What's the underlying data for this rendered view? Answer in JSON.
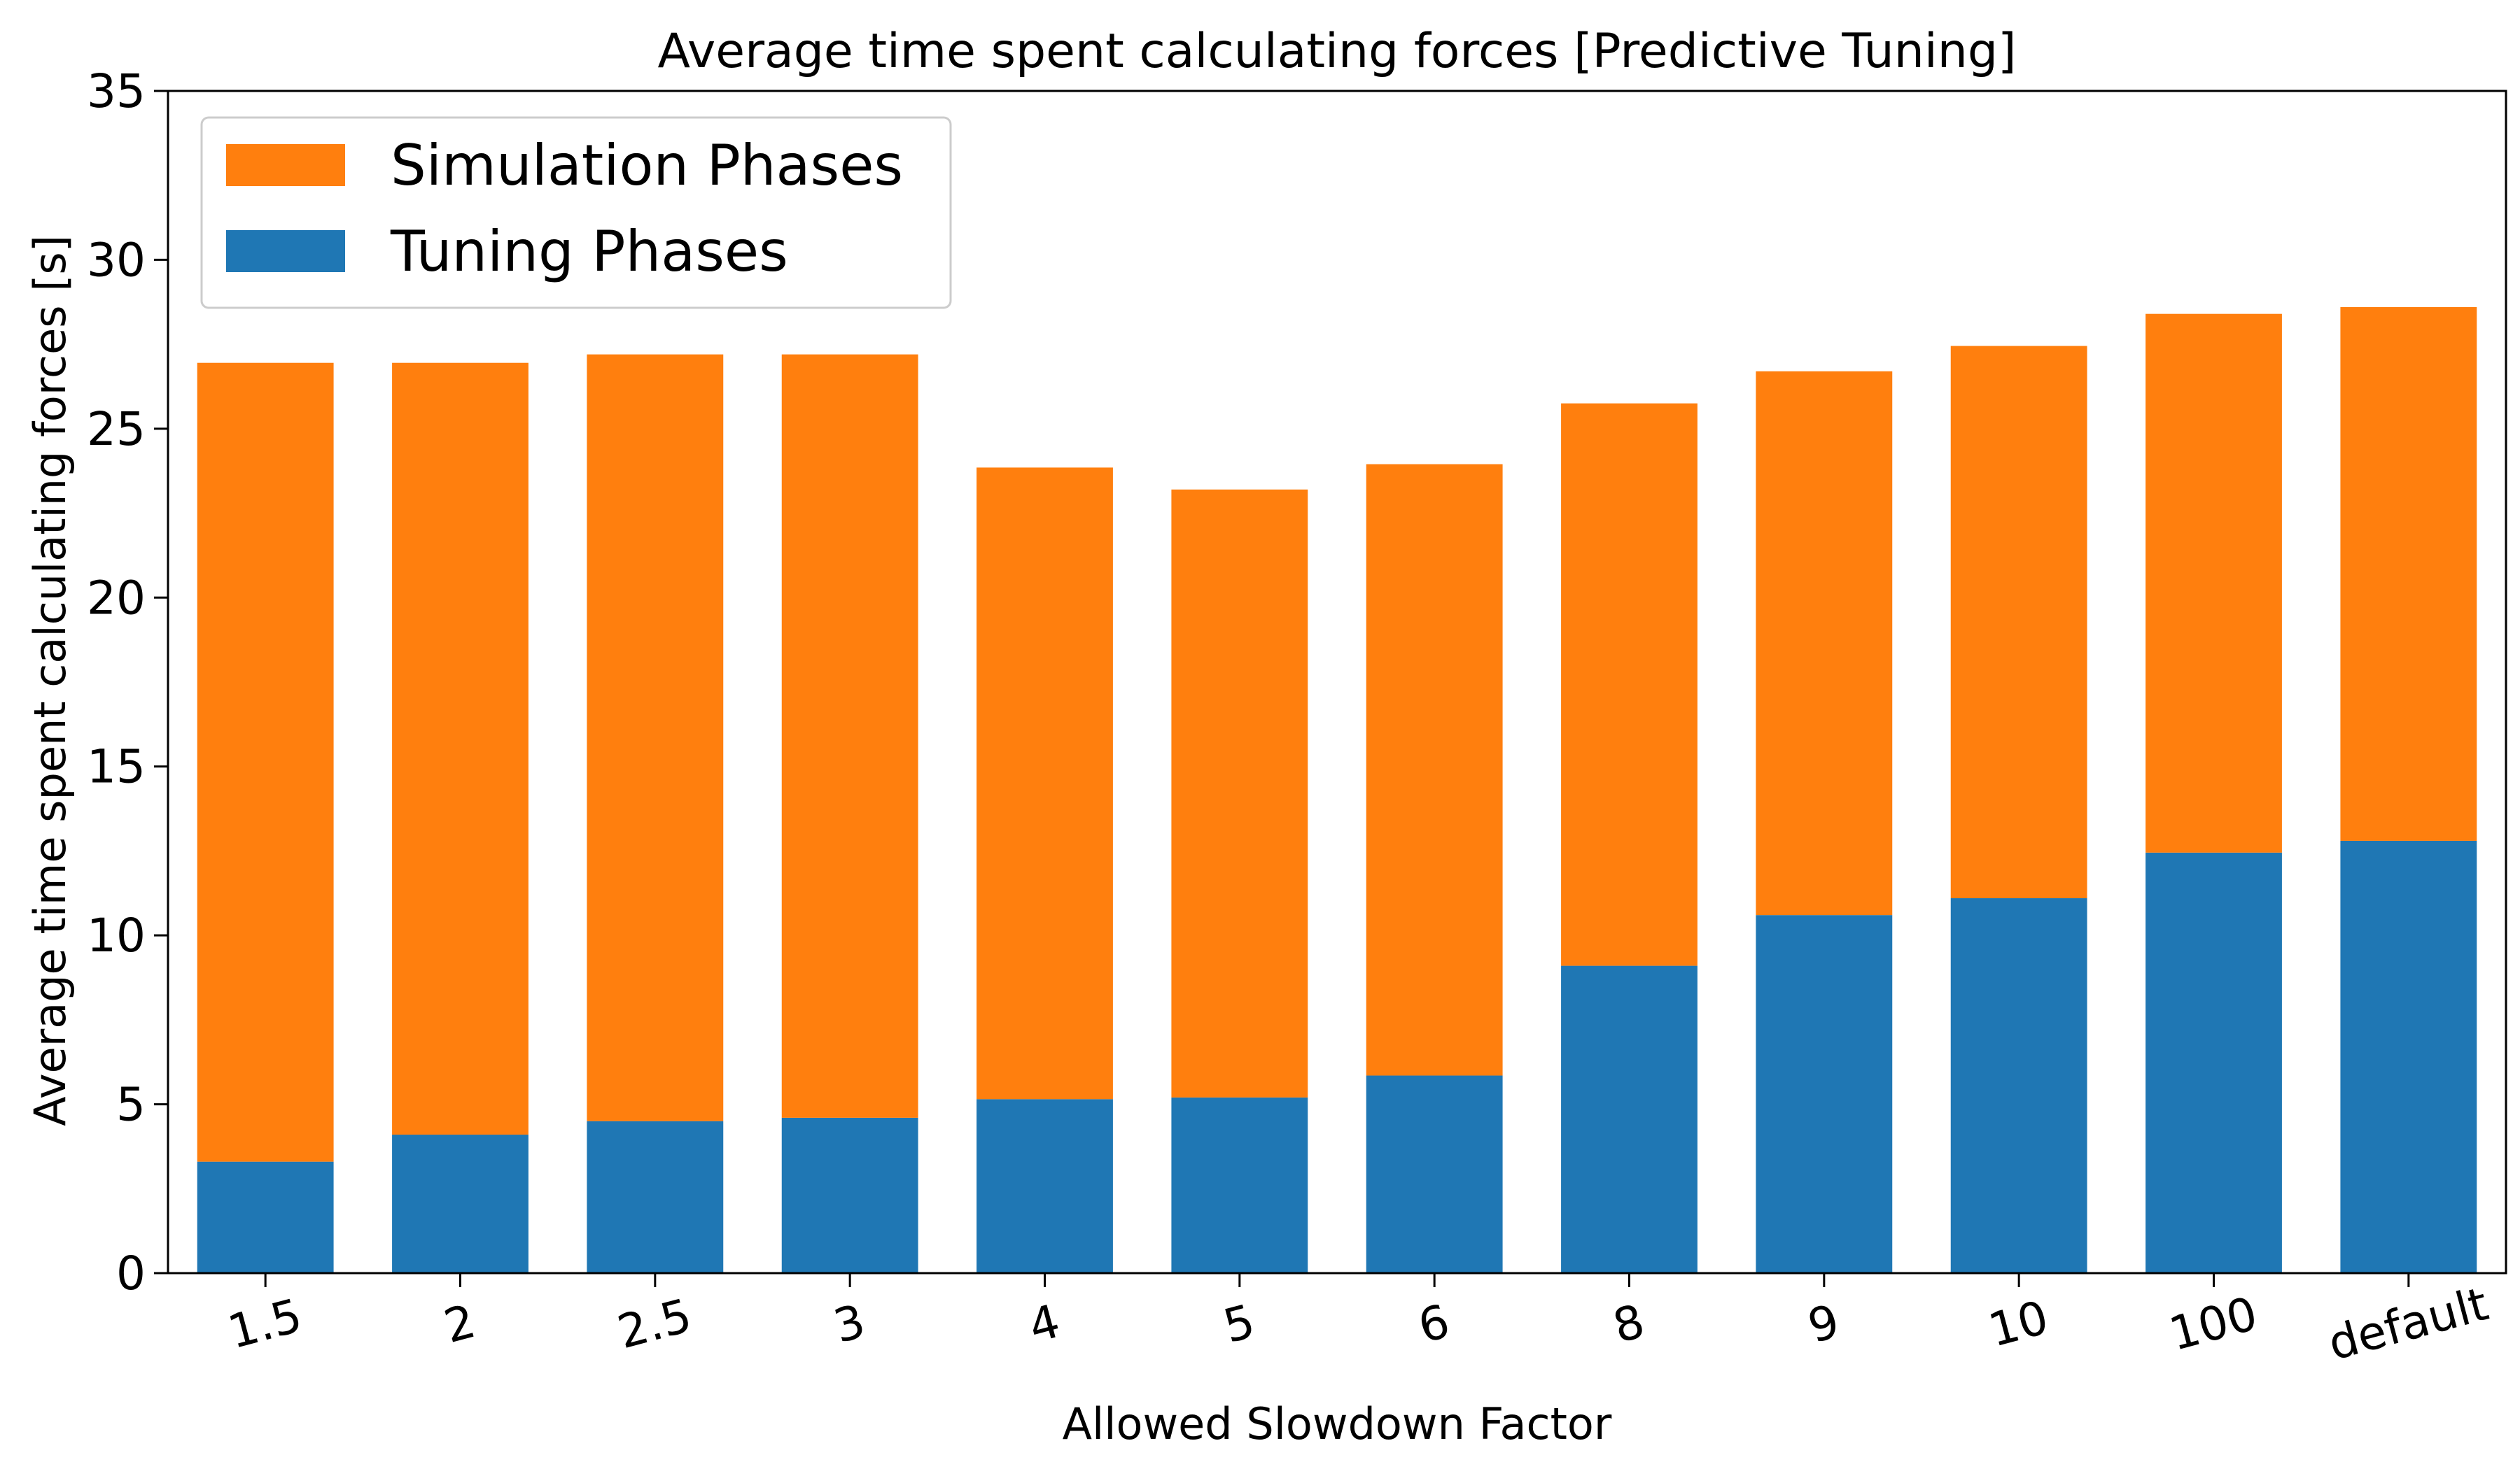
{
  "chart_data": {
    "type": "bar",
    "stacked": true,
    "title": "Average time spent calculating forces [Predictive Tuning]",
    "xlabel": "Allowed Slowdown Factor",
    "ylabel": "Average time spent calculating forces [s]",
    "ylim": [
      0,
      35
    ],
    "yticks": [
      0,
      5,
      10,
      15,
      20,
      25,
      30,
      35
    ],
    "categories": [
      "1.5",
      "2",
      "2.5",
      "3",
      "4",
      "5",
      "6",
      "8",
      "9",
      "10",
      "100",
      "default"
    ],
    "series": [
      {
        "name": "Tuning Phases",
        "color": "#1f77b4",
        "values": [
          3.3,
          4.1,
          4.5,
          4.6,
          5.15,
          5.2,
          5.85,
          9.1,
          10.6,
          11.1,
          12.45,
          12.8
        ]
      },
      {
        "name": "Simulation Phases",
        "color": "#ff7f0e",
        "values": [
          23.65,
          22.85,
          22.7,
          22.6,
          18.7,
          18.0,
          18.1,
          16.65,
          16.1,
          16.35,
          15.95,
          15.8
        ]
      }
    ],
    "legend": {
      "position": "top-left",
      "order": [
        "Simulation Phases",
        "Tuning Phases"
      ]
    },
    "grid": false,
    "xtick_rotation": 15
  }
}
